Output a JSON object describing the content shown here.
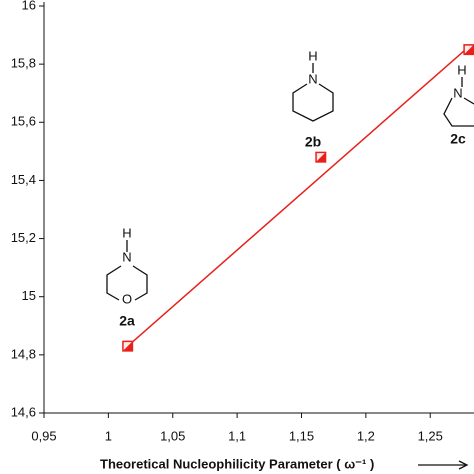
{
  "chart_data": {
    "type": "scatter",
    "xlabel": "Theoretical Nucleophilicity Parameter ( ω⁻¹ )",
    "x": [
      1.015,
      1.165,
      1.28
    ],
    "series": [
      {
        "color": "#e8201c",
        "values": [
          14.83,
          15.48,
          15.85
        ]
      }
    ],
    "trendline": {
      "color": "#e8201c",
      "x": [
        1.015,
        1.28
      ],
      "values": [
        14.83,
        15.86
      ]
    },
    "xlim": [
      0.95,
      1.284
    ],
    "ylim": [
      14.6,
      16
    ],
    "xticks": [
      {
        "value": 0.95,
        "label": "0,95"
      },
      1,
      {
        "value": 1.05,
        "label": "1,05"
      },
      {
        "value": 1.1,
        "label": "1,1"
      },
      {
        "value": 1.15,
        "label": "1,15"
      },
      {
        "value": 1.2,
        "label": "1,2"
      },
      {
        "value": 1.25,
        "label": "1,25"
      }
    ],
    "yticks": [
      {
        "value": 14.6,
        "label": "14,6"
      },
      {
        "value": 14.8,
        "label": "14,8"
      },
      15,
      {
        "value": 15.2,
        "label": "15,2"
      },
      {
        "value": 15.4,
        "label": "15,4"
      },
      {
        "value": 15.6,
        "label": "15,6"
      },
      {
        "value": 15.8,
        "label": "15,8"
      },
      16
    ],
    "annotations": [
      {
        "label": "2a",
        "atoms": [
          "H",
          "N",
          "O"
        ]
      },
      {
        "label": "2b",
        "atoms": [
          "H",
          "N"
        ]
      },
      {
        "label": "2c",
        "atoms": [
          "H",
          "N"
        ]
      }
    ]
  }
}
